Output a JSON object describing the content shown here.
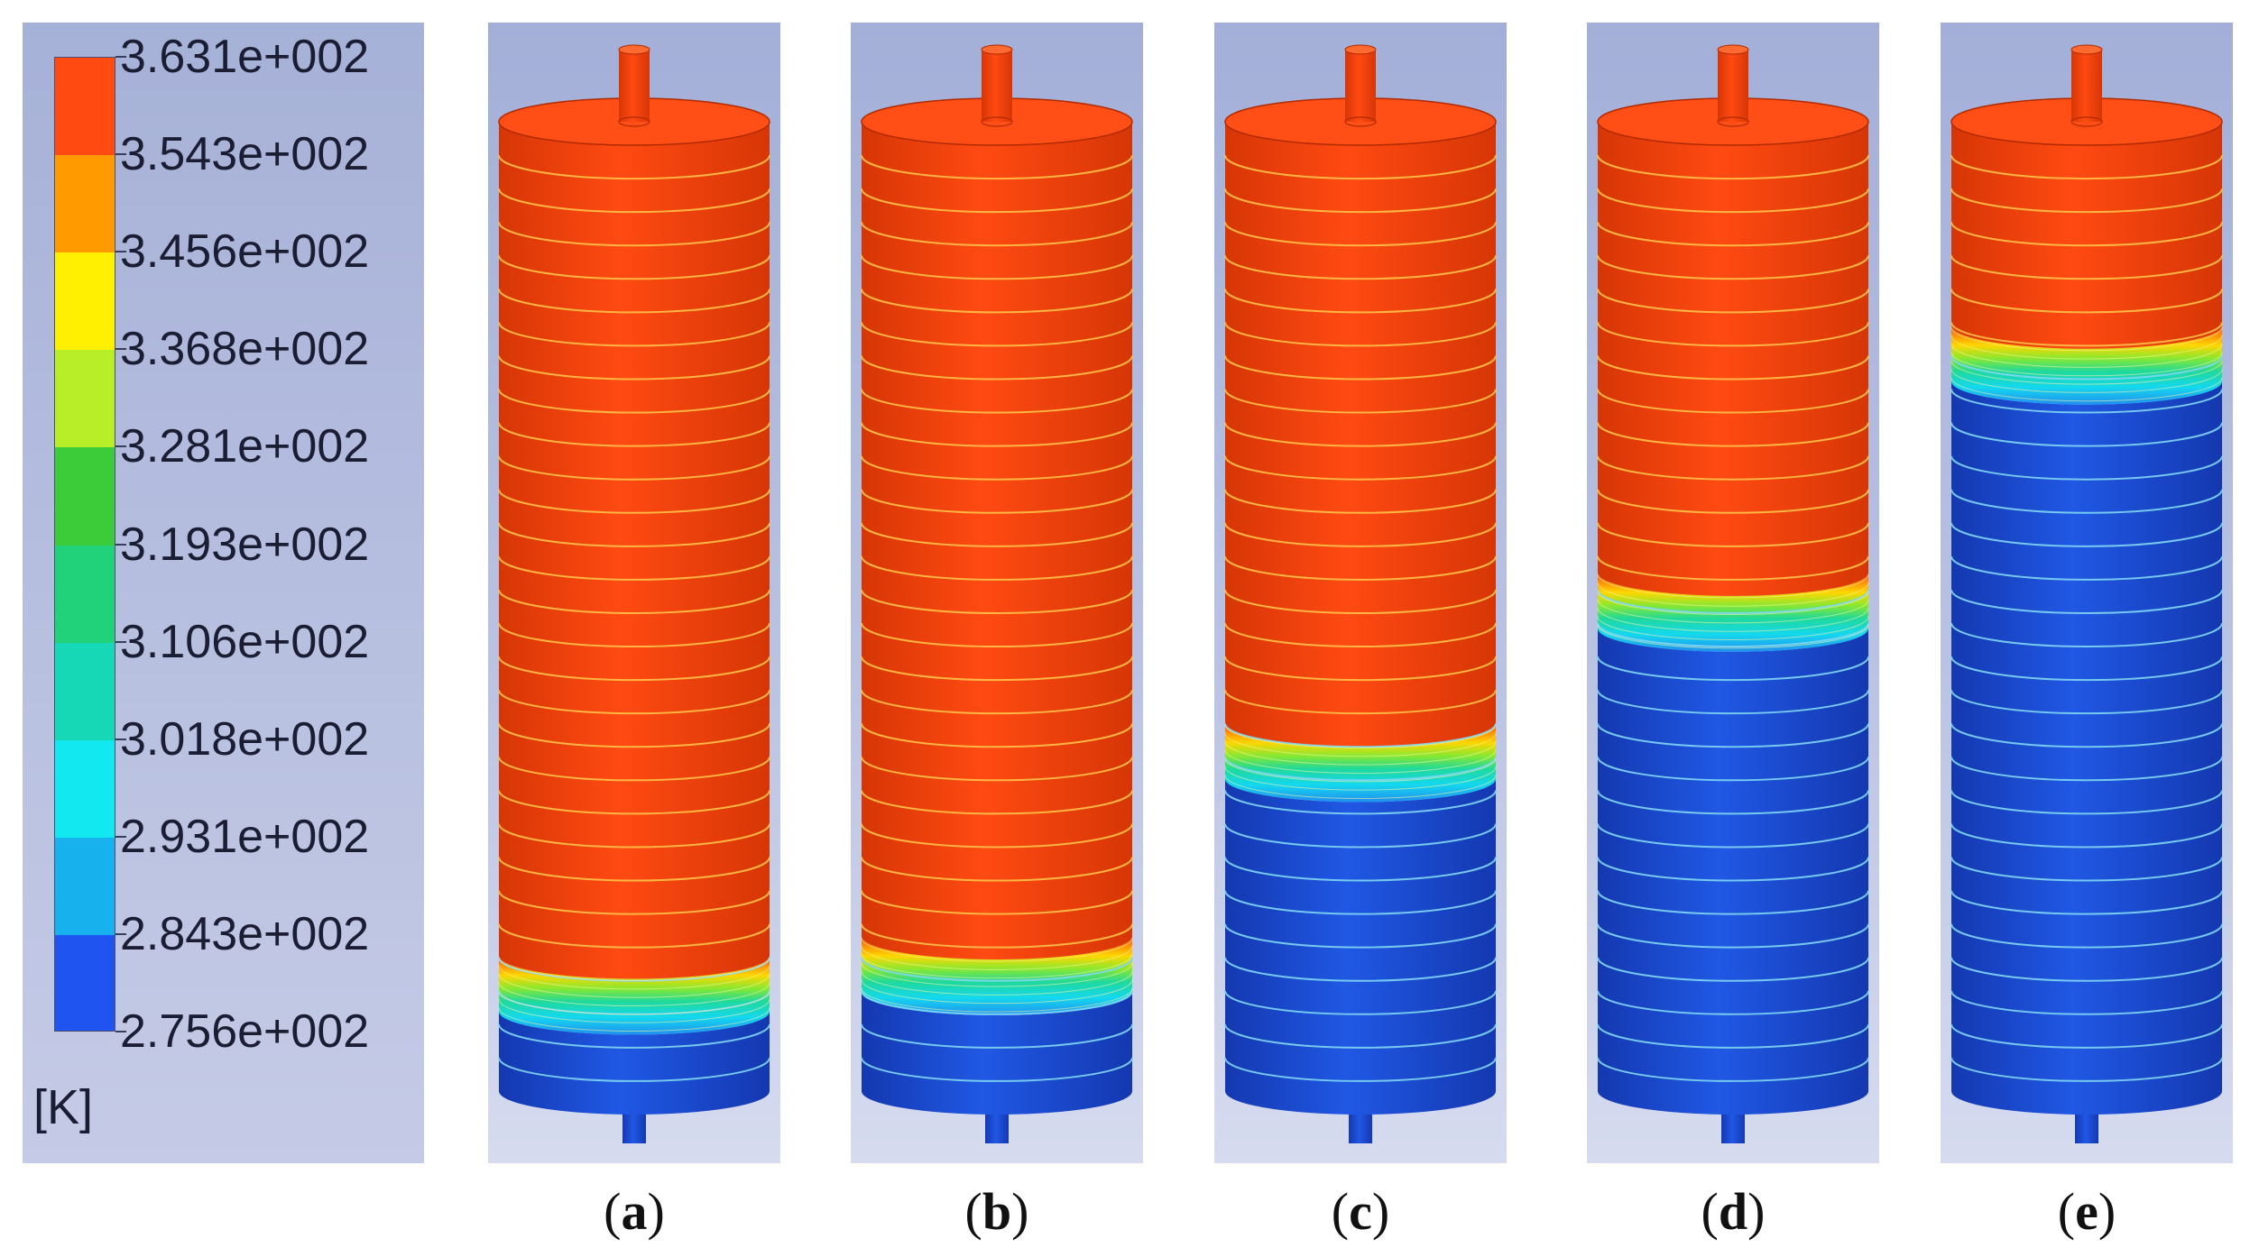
{
  "legend": {
    "labels": [
      "3.631e+002",
      "3.543e+002",
      "3.456e+002",
      "3.368e+002",
      "3.281e+002",
      "3.193e+002",
      "3.106e+002",
      "3.018e+002",
      "2.931e+002",
      "2.843e+002",
      "2.756e+002"
    ],
    "band_colors": [
      "#ff4a12",
      "#ff9a00",
      "#ffef00",
      "#b8ee28",
      "#3ccc3a",
      "#22d27a",
      "#16d8b6",
      "#12e8ef",
      "#17b1ee",
      "#1f54f0"
    ],
    "unit": "[K]"
  },
  "panels": [
    {
      "letter": "a",
      "hot_fraction": 0.86
    },
    {
      "letter": "b",
      "hot_fraction": 0.84
    },
    {
      "letter": "c",
      "hot_fraction": 0.62
    },
    {
      "letter": "d",
      "hot_fraction": 0.465
    },
    {
      "letter": "e",
      "hot_fraction": 0.21
    }
  ],
  "colors": {
    "hot": "#ff4a12",
    "hot_dark": "#d63606",
    "cold": "#2058e4",
    "cold_dark": "#1438b0",
    "ring_hot": "#ffc248",
    "ring_cold": "#7fd6f2"
  }
}
